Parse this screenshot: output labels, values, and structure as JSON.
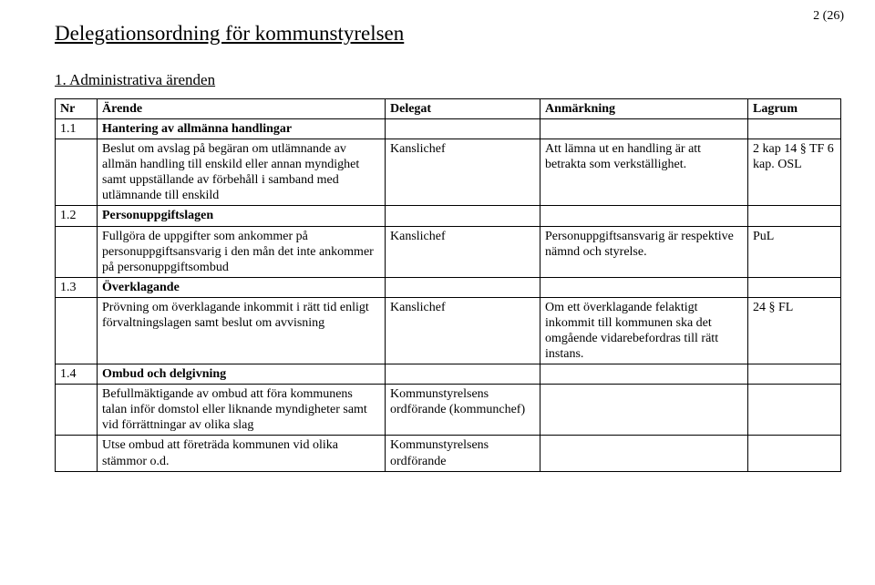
{
  "page_number": "2 (26)",
  "title": "Delegationsordning för kommunstyrelsen",
  "section_heading": "1. Administrativa ärenden",
  "columns": {
    "nr": "Nr",
    "arende": "Ärende",
    "delegat": "Delegat",
    "anm": "Anmärkning",
    "lagrum": "Lagrum"
  },
  "rows": [
    {
      "kind": "subhead",
      "nr": "1.1",
      "arende": "Hantering av allmänna handlingar"
    },
    {
      "kind": "data",
      "nr": "",
      "arende": "Beslut om avslag på begäran om utlämnande av allmän handling till enskild eller annan myndighet samt uppställande av förbehåll i samband med utlämnande till enskild",
      "delegat": "Kanslichef",
      "anm": "Att lämna ut en handling är att betrakta som verkställighet.",
      "lagrum": "2 kap 14 § TF 6 kap. OSL"
    },
    {
      "kind": "subhead",
      "nr": "1.2",
      "arende": "Personuppgiftslagen"
    },
    {
      "kind": "data",
      "nr": "",
      "arende": "Fullgöra de uppgifter som ankommer på personuppgiftsansvarig i den mån det inte ankommer på personuppgiftsombud",
      "delegat": "Kanslichef",
      "anm": "Personuppgiftsansvarig är respektive nämnd och styrelse.",
      "lagrum": "PuL"
    },
    {
      "kind": "subhead",
      "nr": "1.3",
      "arende": "Överklagande"
    },
    {
      "kind": "data",
      "nr": "",
      "arende": "Prövning om överklagande inkommit i rätt tid enligt förvaltningslagen samt beslut om avvisning",
      "delegat": "Kanslichef",
      "anm": "Om ett överklagande felaktigt inkommit till kommunen ska det omgående vidarebefordras till rätt instans.",
      "lagrum": "24 § FL"
    },
    {
      "kind": "subhead",
      "nr": "1.4",
      "arende": "Ombud och delgivning"
    },
    {
      "kind": "data",
      "nr": "",
      "arende": "Befullmäktigande av ombud att föra kommunens talan inför domstol eller liknande myndigheter samt vid förrättningar av olika slag",
      "delegat": "Kommunstyrelsens ordförande (kommunchef)",
      "anm": "",
      "lagrum": ""
    },
    {
      "kind": "data",
      "nr": "",
      "arende": "Utse ombud att företräda kommunen vid olika stämmor o.d.",
      "delegat": "Kommunstyrelsens ordförande",
      "anm": "",
      "lagrum": ""
    }
  ]
}
